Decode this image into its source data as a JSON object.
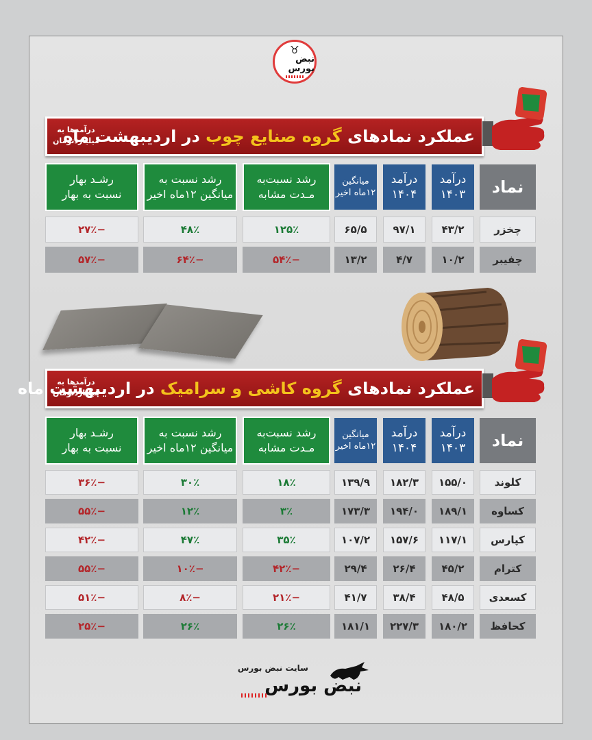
{
  "brand": {
    "logo_text": "نبض بورس",
    "footer_site": "سایت نبض بورس",
    "footer_brand": "نبض بورس"
  },
  "headers": {
    "symbol": "نماد",
    "rev1403": [
      "درآمد",
      "۱۴۰۳"
    ],
    "rev1404": [
      "درآمد",
      "۱۴۰۴"
    ],
    "avg": [
      "میانگین",
      "۱۲ماه اخیر"
    ],
    "g_same": [
      "رشد نسبت‌به",
      "مـدت مشابه"
    ],
    "g_avg": [
      "رشد نسبت به",
      "میانگین ۱۲ماه اخیر"
    ],
    "g_spring": [
      "رشـد  بهار",
      "نسبت به بهار"
    ]
  },
  "section1": {
    "title_pre": "عملکرد نمادهای ",
    "title_hl": "گروه صنایع چوب",
    "title_post": " در اردیبهشت ماه",
    "note": [
      "درآمدها به",
      "میلیاردتومان"
    ],
    "rows": [
      {
        "name": "چخزر",
        "r1403": "۴۳/۲",
        "r1404": "۹۷/۱",
        "avg": "۶۵/۵",
        "same": "۱۲۵٪",
        "vsavg": "۴۸٪",
        "spring": "−۲۷٪"
      },
      {
        "name": "چفیبر",
        "r1403": "۱۰/۲",
        "r1404": "۴/۷",
        "avg": "۱۳/۲",
        "same": "−۵۴٪",
        "vsavg": "−۶۴٪",
        "spring": "−۵۷٪"
      }
    ]
  },
  "section2": {
    "title_pre": "عملکرد نمادهای ",
    "title_hl": "گروه کاشی و سرامیک",
    "title_post": " در اردیبهشت ماه",
    "note": [
      "درآمدها به",
      "میلیاردتومان"
    ],
    "rows": [
      {
        "name": "کلوند",
        "r1403": "۱۵۵/۰",
        "r1404": "۱۸۲/۳",
        "avg": "۱۳۹/۹",
        "same": "۱۸٪",
        "vsavg": "۳۰٪",
        "spring": "−۳۶٪"
      },
      {
        "name": "کساوه",
        "r1403": "۱۸۹/۱",
        "r1404": "۱۹۴/۰",
        "avg": "۱۷۳/۳",
        "same": "۳٪",
        "vsavg": "۱۲٪",
        "spring": "−۵۵٪"
      },
      {
        "name": "کپارس",
        "r1403": "۱۱۷/۱",
        "r1404": "۱۵۷/۶",
        "avg": "۱۰۷/۲",
        "same": "۳۵٪",
        "vsavg": "۴۷٪",
        "spring": "−۴۲٪"
      },
      {
        "name": "کترام",
        "r1403": "۴۵/۲",
        "r1404": "۲۶/۴",
        "avg": "۲۹/۴",
        "same": "−۴۲٪",
        "vsavg": "−۱۰٪",
        "spring": "−۵۵٪"
      },
      {
        "name": "کسعدی",
        "r1403": "۴۸/۵",
        "r1404": "۳۸/۴",
        "avg": "۴۱/۷",
        "same": "−۲۱٪",
        "vsavg": "−۸٪",
        "spring": "−۵۱٪"
      },
      {
        "name": "کحافظ",
        "r1403": "۱۸۰/۲",
        "r1404": "۲۲۷/۳",
        "avg": "۱۸۱/۱",
        "same": "۲۶٪",
        "vsavg": "۲۶٪",
        "spring": "−۲۵٪"
      }
    ]
  },
  "colors": {
    "positive": "#1b7a35",
    "negative": "#b3262a",
    "banner": "#a71c1c",
    "highlight": "#f3c21c",
    "green_header": "#1f8b3d",
    "blue_header": "#2d5b92"
  }
}
